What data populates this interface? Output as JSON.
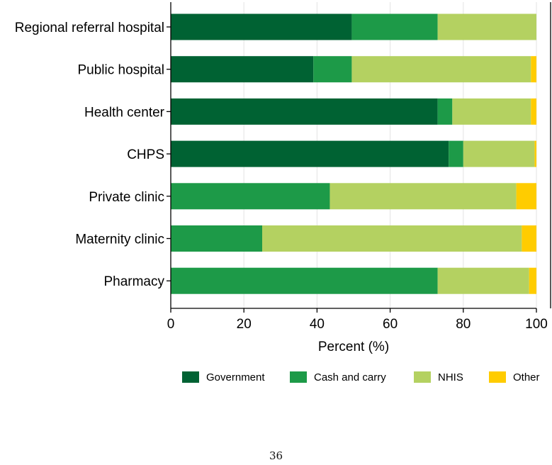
{
  "chart_data": {
    "type": "bar",
    "orientation": "horizontal",
    "stacked": true,
    "categories": [
      "Regional referral hospital",
      "Public hospital",
      "Health center",
      "CHPS",
      "Private clinic",
      "Maternity clinic",
      "Pharmacy"
    ],
    "series": [
      {
        "name": "Government",
        "color": "#006233",
        "values": [
          49.5,
          39,
          73,
          76,
          0,
          0,
          0
        ]
      },
      {
        "name": "Cash and carry",
        "color": "#1d9a48",
        "values": [
          23.5,
          10.5,
          4,
          4,
          43.5,
          25,
          73
        ]
      },
      {
        "name": "NHIS",
        "color": "#b4d161",
        "values": [
          27,
          49,
          21.5,
          19.5,
          51,
          71,
          25
        ]
      },
      {
        "name": "Other",
        "color": "#ffcc00",
        "values": [
          0,
          1.5,
          1.5,
          0.5,
          5.5,
          4,
          2
        ]
      }
    ],
    "xlabel": "Percent (%)",
    "ylabel": "",
    "xlim": [
      0,
      100
    ],
    "xticks": [
      0,
      20,
      40,
      60,
      80,
      100
    ],
    "grid": "vertical",
    "legend_position": "bottom"
  },
  "page": {
    "number": "36"
  }
}
